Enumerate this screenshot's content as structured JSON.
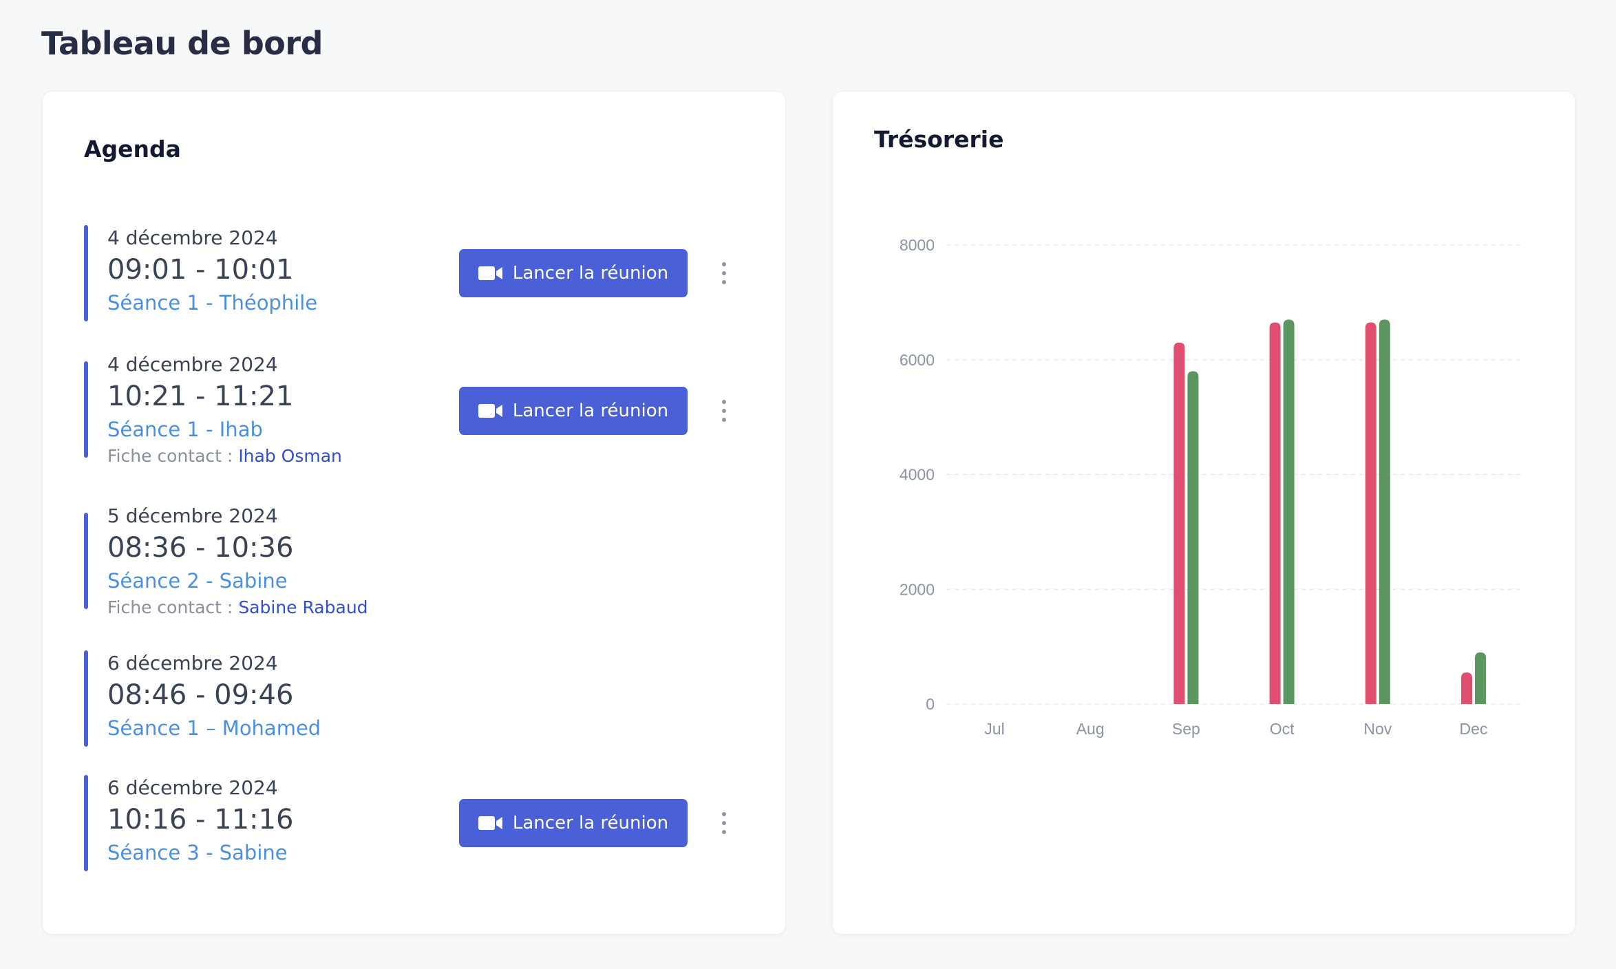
{
  "page": {
    "title": "Tableau de bord"
  },
  "agenda": {
    "title": "Agenda",
    "button_label": "Lancer la réunion",
    "contact_prefix": "Fiche contact :",
    "events": [
      {
        "date": "4 décembre 2024",
        "time": "09:01 - 10:01",
        "session": "Séance 1 - Théophile",
        "contact": "",
        "has_button": true
      },
      {
        "date": "4 décembre 2024",
        "time": "10:21 - 11:21",
        "session": "Séance 1 - Ihab",
        "contact": "Ihab Osman",
        "has_button": true
      },
      {
        "date": "5 décembre 2024",
        "time": "08:36 - 10:36",
        "session": "Séance 2 - Sabine",
        "contact": "Sabine Rabaud",
        "has_button": false
      },
      {
        "date": "6 décembre 2024",
        "time": "08:46 - 09:46",
        "session": "Séance 1 – Mohamed",
        "contact": "",
        "has_button": false
      },
      {
        "date": "6 décembre 2024",
        "time": "10:16 - 11:16",
        "session": "Séance 3 - Sabine",
        "contact": "",
        "has_button": true
      }
    ]
  },
  "treasury": {
    "title": "Trésorerie",
    "chart_data": {
      "type": "bar",
      "categories": [
        "Jul",
        "Aug",
        "Sep",
        "Oct",
        "Nov",
        "Dec"
      ],
      "series": [
        {
          "color": "#e04f6f",
          "values": [
            0,
            0,
            6300,
            6650,
            6650,
            550
          ]
        },
        {
          "color": "#5b9560",
          "values": [
            0,
            0,
            5800,
            6700,
            6700,
            900
          ]
        }
      ],
      "ylim": [
        0,
        8000
      ],
      "yticks": [
        0,
        2000,
        4000,
        6000,
        8000
      ],
      "grid": true,
      "title": "",
      "xlabel": "",
      "ylabel": ""
    }
  },
  "colors": {
    "accent": "#4a60d6",
    "link": "#4a90e2",
    "contact_link": "#2f4fd0"
  },
  "icons": {
    "button": "video-camera-icon",
    "menu": "more-vertical-icon"
  }
}
